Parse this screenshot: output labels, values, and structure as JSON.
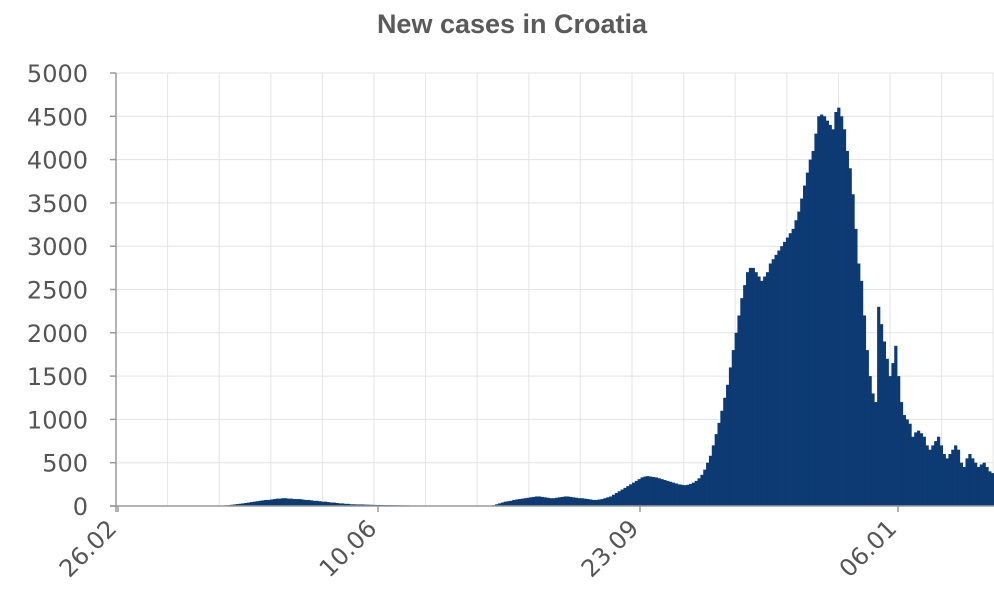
{
  "chart_data": {
    "type": "bar",
    "title": "New cases in Croatia",
    "xlabel": "",
    "ylabel": "",
    "ylim": [
      0,
      5000
    ],
    "yticks": [
      0,
      500,
      1000,
      1500,
      2000,
      2500,
      3000,
      3500,
      4000,
      4500,
      5000
    ],
    "xtick_labels": [
      "26.02",
      "10.06",
      "23.09",
      "06.01"
    ],
    "grid": true,
    "legend": "none",
    "bar_color": "#0d3a73",
    "series": [
      {
        "values": [
          3,
          3,
          3,
          3,
          3,
          3,
          3,
          3,
          3,
          3,
          3,
          3,
          3,
          3,
          3,
          3,
          3,
          3,
          3,
          3,
          3,
          3,
          3,
          3,
          3,
          3,
          3,
          3,
          3,
          3,
          3,
          3,
          3,
          3,
          3,
          3,
          3,
          5,
          8,
          10,
          14,
          18,
          22,
          26,
          30,
          35,
          40,
          45,
          50,
          55,
          60,
          65,
          70,
          70,
          75,
          80,
          85,
          85,
          90,
          90,
          85,
          85,
          80,
          80,
          80,
          75,
          70,
          70,
          65,
          60,
          60,
          55,
          50,
          50,
          45,
          40,
          40,
          35,
          30,
          30,
          25,
          25,
          20,
          20,
          18,
          18,
          18,
          16,
          15,
          14,
          13,
          12,
          12,
          11,
          11,
          10,
          10,
          9,
          9,
          8,
          8,
          7,
          7,
          6,
          6,
          6,
          5,
          5,
          5,
          5,
          5,
          5,
          5,
          5,
          5,
          5,
          5,
          5,
          5,
          5,
          5,
          5,
          5,
          5,
          5,
          5,
          5,
          5,
          5,
          5,
          5,
          5,
          10,
          20,
          30,
          40,
          50,
          55,
          60,
          70,
          75,
          80,
          85,
          90,
          95,
          100,
          105,
          110,
          110,
          105,
          100,
          95,
          90,
          90,
          95,
          100,
          105,
          110,
          110,
          105,
          100,
          95,
          90,
          90,
          85,
          80,
          75,
          70,
          70,
          75,
          80,
          90,
          100,
          110,
          130,
          150,
          170,
          190,
          210,
          230,
          250,
          270,
          290,
          310,
          330,
          340,
          345,
          340,
          335,
          330,
          320,
          310,
          300,
          290,
          280,
          270,
          260,
          250,
          245,
          240,
          245,
          255,
          270,
          290,
          320,
          360,
          420,
          500,
          580,
          700,
          830,
          960,
          1100,
          1250,
          1400,
          1600,
          1800,
          2000,
          2200,
          2400,
          2550,
          2700,
          2750,
          2750,
          2700,
          2650,
          2600,
          2650,
          2700,
          2800,
          2850,
          2900,
          2950,
          3000,
          3050,
          3100,
          3150,
          3200,
          3300,
          3400,
          3550,
          3700,
          3850,
          4000,
          4100,
          4300,
          4500,
          4520,
          4500,
          4450,
          4400,
          4350,
          4550,
          4600,
          4500,
          4350,
          4100,
          3900,
          3600,
          3200,
          2800,
          2600,
          2200,
          1800,
          1500,
          1300,
          1200,
          2300,
          2100,
          1900,
          1700,
          1500,
          1650,
          1850,
          1500,
          1200,
          1050,
          1000,
          950,
          800,
          850,
          870,
          840,
          800,
          700,
          650,
          700,
          750,
          800,
          700,
          600,
          550,
          600,
          650,
          700,
          650,
          500,
          450,
          550,
          600,
          550,
          500,
          450,
          480,
          500,
          450,
          400,
          380
        ]
      }
    ]
  }
}
